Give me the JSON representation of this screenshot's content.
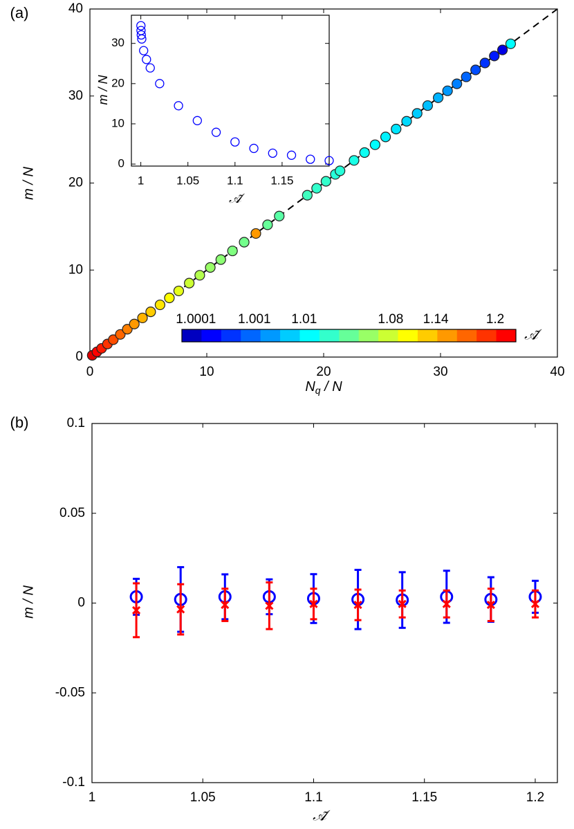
{
  "chart_data": [
    {
      "type": "scatter",
      "panel_label": "(a)",
      "ylabel": "m / N",
      "xlabel": {
        "base": "N",
        "sub": "q",
        "rest": " / N"
      },
      "xlim": [
        0,
        40
      ],
      "ylim": [
        0,
        40
      ],
      "xticks": [
        0,
        10,
        20,
        30,
        40
      ],
      "yticks": [
        0,
        10,
        20,
        30,
        40
      ],
      "diagonal": true,
      "x": [
        0.2,
        0.6,
        1.0,
        1.5,
        2.0,
        2.6,
        3.2,
        3.8,
        4.5,
        5.2,
        6.0,
        6.8,
        7.6,
        8.5,
        9.4,
        10.3,
        11.2,
        12.2,
        13.2,
        14.2,
        15.2,
        16.2,
        18.6,
        19.4,
        20.2,
        21.0,
        21.4,
        22.6,
        23.5,
        24.4,
        25.3,
        26.2,
        27.1,
        28.0,
        28.9,
        29.8,
        30.6,
        31.4,
        32.2,
        33.0,
        33.8,
        34.6,
        35.3,
        36.0
      ],
      "values": [
        0.2,
        0.6,
        1.0,
        1.5,
        2.0,
        2.6,
        3.2,
        3.8,
        4.5,
        5.2,
        6.0,
        6.8,
        7.6,
        8.5,
        9.4,
        10.3,
        11.2,
        12.2,
        13.2,
        14.2,
        15.2,
        16.2,
        18.6,
        19.4,
        20.2,
        21.0,
        21.4,
        22.6,
        23.5,
        24.4,
        25.3,
        26.2,
        27.1,
        28.0,
        28.9,
        29.8,
        30.6,
        31.4,
        32.2,
        33.0,
        33.8,
        34.6,
        35.3,
        36.0
      ],
      "colors": [
        "#e00000",
        "#ff0000",
        "#ff1a00",
        "#ff3300",
        "#ff4d00",
        "#ff6600",
        "#ff8000",
        "#ff9900",
        "#ffb300",
        "#ffcc00",
        "#ffe600",
        "#ffff00",
        "#e6ff1a",
        "#ccff33",
        "#b3ff4d",
        "#99ff66",
        "#8cff73",
        "#80ff80",
        "#73ff8c",
        "#ff9900",
        "#66ff99",
        "#59ffa6",
        "#40ffbf",
        "#33ffcc",
        "#33ffcc",
        "#26ffd9",
        "#26ffd9",
        "#1affe6",
        "#0dfff2",
        "#00ffff",
        "#00f2ff",
        "#00e6ff",
        "#00d9ff",
        "#00ccff",
        "#00bfff",
        "#00b3ff",
        "#0099ff",
        "#0080ff",
        "#0066ff",
        "#004dff",
        "#0033ff",
        "#001aff",
        "#0000e6",
        "#00ffff"
      ],
      "colorbar": {
        "label": "𝒜̃",
        "ticks": [
          "1.0001",
          "1.001",
          "1.01",
          "1.08",
          "1.14",
          "1.2"
        ],
        "colors": [
          "#0000c0",
          "#0000ff",
          "#0033ff",
          "#0066ff",
          "#0099ff",
          "#00ccff",
          "#00ffff",
          "#33ffcc",
          "#66ff99",
          "#99ff66",
          "#ccff33",
          "#ffff00",
          "#ffcc00",
          "#ff9900",
          "#ff6600",
          "#ff3300",
          "#ff0000"
        ]
      }
    },
    {
      "type": "scatter",
      "ylabel": "m / N",
      "xlabel": "𝒜̃",
      "xlim": [
        0.99,
        1.2
      ],
      "ylim": [
        -0.5,
        37
      ],
      "xticks": [
        1,
        1.05,
        1.1,
        1.15
      ],
      "yticks": [
        0,
        10,
        20,
        30
      ],
      "color": "#0000ff",
      "x": [
        1.0001,
        1.0002,
        1.0005,
        1.001,
        1.003,
        1.006,
        1.01,
        1.02,
        1.04,
        1.06,
        1.08,
        1.1,
        1.12,
        1.14,
        1.16,
        1.18,
        1.2
      ],
      "values": [
        34.4,
        33.2,
        32.1,
        31.1,
        28.2,
        26,
        23.9,
        20,
        14.5,
        10.8,
        7.9,
        5.5,
        3.9,
        2.7,
        2.2,
        1.2,
        0.85
      ]
    },
    {
      "type": "errorbar",
      "panel_label": "(b)",
      "ylabel": "m / N",
      "xlabel": "𝒜̃",
      "xlim": [
        1,
        1.21
      ],
      "ylim": [
        -0.1,
        0.1
      ],
      "xticks": [
        1,
        1.05,
        1.1,
        1.15,
        1.2
      ],
      "yticks": [
        -0.1,
        -0.05,
        0,
        0.05,
        0.1
      ],
      "x": [
        1.02,
        1.04,
        1.06,
        1.08,
        1.1,
        1.12,
        1.14,
        1.16,
        1.18,
        1.2
      ],
      "series": [
        {
          "color": "#0000ff",
          "marker": "circle",
          "values": [
            0.0035,
            0.002,
            0.0035,
            0.0035,
            0.0025,
            0.002,
            0.0017,
            0.0035,
            0.002,
            0.0035
          ],
          "errors": [
            0.01,
            0.018,
            0.0125,
            0.0097,
            0.0136,
            0.0165,
            0.0155,
            0.0145,
            0.0124,
            0.0089
          ]
        },
        {
          "color": "#ff0000",
          "marker": "x",
          "values": [
            -0.004,
            -0.0035,
            -0.001,
            -0.0015,
            -0.0005,
            -0.001,
            -0.0005,
            -0.0005,
            -0.001,
            -0.0005
          ],
          "errors": [
            0.015,
            0.014,
            0.009,
            0.013,
            0.0085,
            0.0085,
            0.0075,
            0.0075,
            0.009,
            0.0075
          ]
        }
      ]
    }
  ]
}
